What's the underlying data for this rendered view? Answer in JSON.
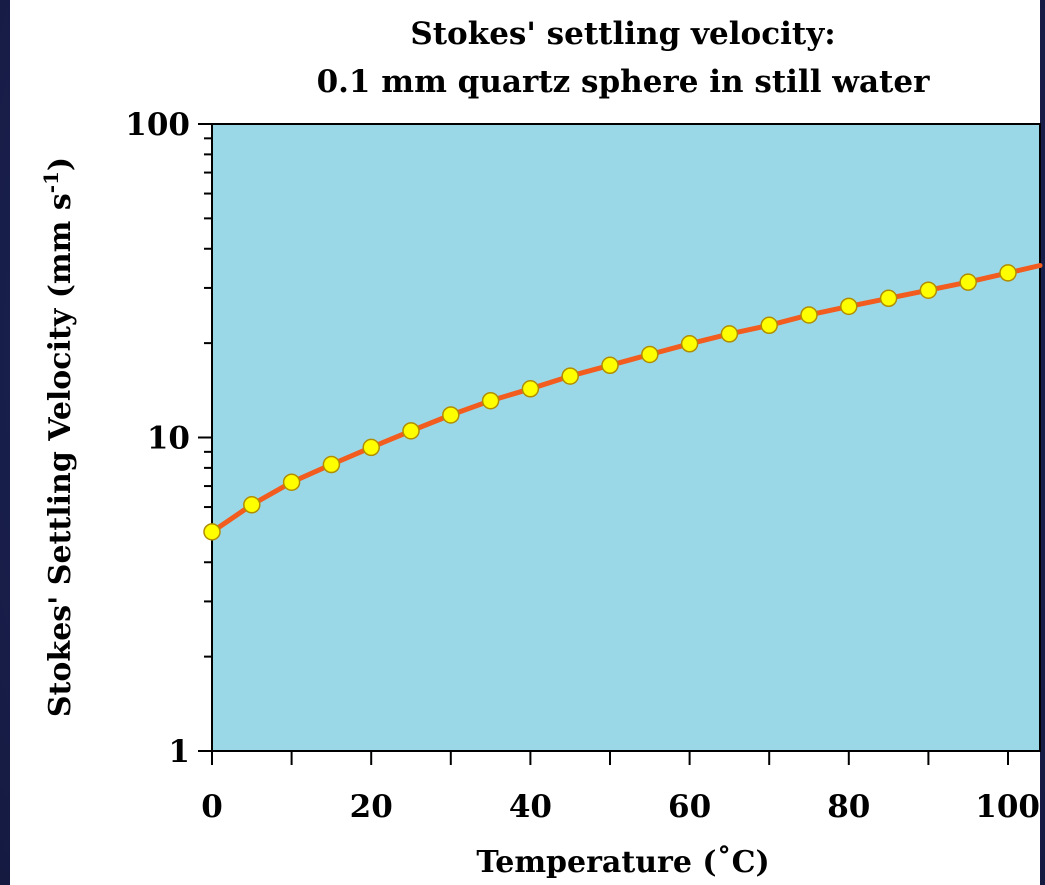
{
  "chart_data": {
    "type": "line",
    "title": "Stokes' settling velocity:",
    "subtitle": "0.1 mm quartz sphere in still water",
    "xlabel": "Temperature (˚C)",
    "ylabel": "Stokes' Settling Velocity (mm s",
    "ylabel_superscript": "-1",
    "ylabel_close": ")",
    "yscale": "log",
    "xlim": [
      0,
      105
    ],
    "ylim": [
      1,
      100
    ],
    "x_ticks": [
      "0",
      "20",
      "40",
      "60",
      "80",
      "100"
    ],
    "y_ticks": [
      "1",
      "10",
      "100"
    ],
    "grid": false,
    "colors": {
      "plot_background": "#9bd8e7",
      "line": "#f25c1e",
      "marker_fill": "#ffff00",
      "marker_edge": "#b08d00"
    },
    "series": [
      {
        "x": [
          0,
          5,
          10,
          15,
          20,
          25,
          30,
          35,
          40,
          45,
          50,
          55,
          60,
          65,
          70,
          75,
          80,
          85,
          90,
          95,
          100
        ],
        "y": [
          5.0,
          6.1,
          7.2,
          8.2,
          9.3,
          10.5,
          11.8,
          13.1,
          14.3,
          15.7,
          17.0,
          18.4,
          19.9,
          21.4,
          22.8,
          24.6,
          26.2,
          27.8,
          29.5,
          31.3,
          33.5
        ]
      }
    ]
  }
}
